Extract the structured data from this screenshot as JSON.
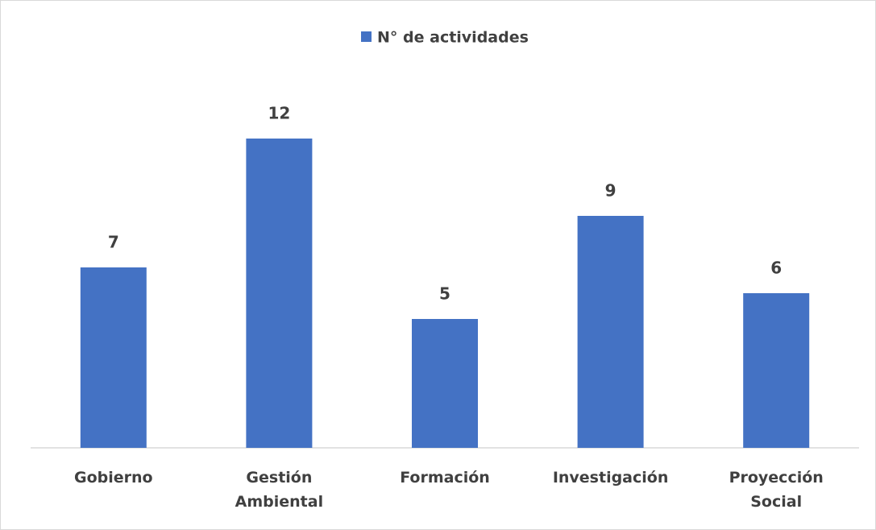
{
  "chart_data": {
    "type": "bar",
    "categories": [
      "Gobierno",
      "Gestión Ambiental",
      "Formación",
      "Investigación",
      "Proyección Social"
    ],
    "series": [
      {
        "name": "N° de actividades",
        "color": "#4472c4",
        "values": [
          7,
          12,
          5,
          9,
          6
        ]
      }
    ],
    "legend": "top"
  }
}
